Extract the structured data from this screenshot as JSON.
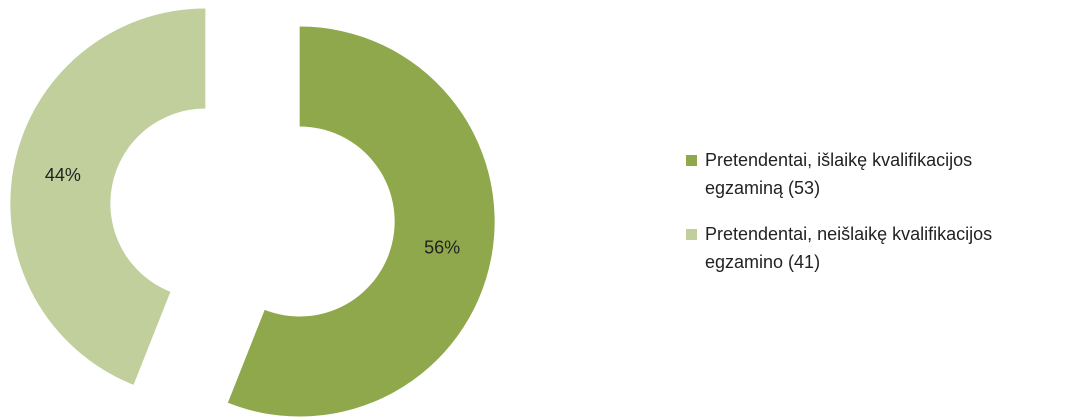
{
  "chart_data": {
    "type": "donut",
    "categories": [
      "Pretendentai, išlaikę kvalifikacijos egzaminą (53)",
      "Pretendentai, neišlaikę kvalifikacijos egzamino (41)"
    ],
    "values": [
      56,
      44
    ],
    "value_labels": [
      "56%",
      "44%"
    ],
    "colors": [
      "#8fa84b",
      "#c0cf9c"
    ],
    "legend": "right"
  }
}
